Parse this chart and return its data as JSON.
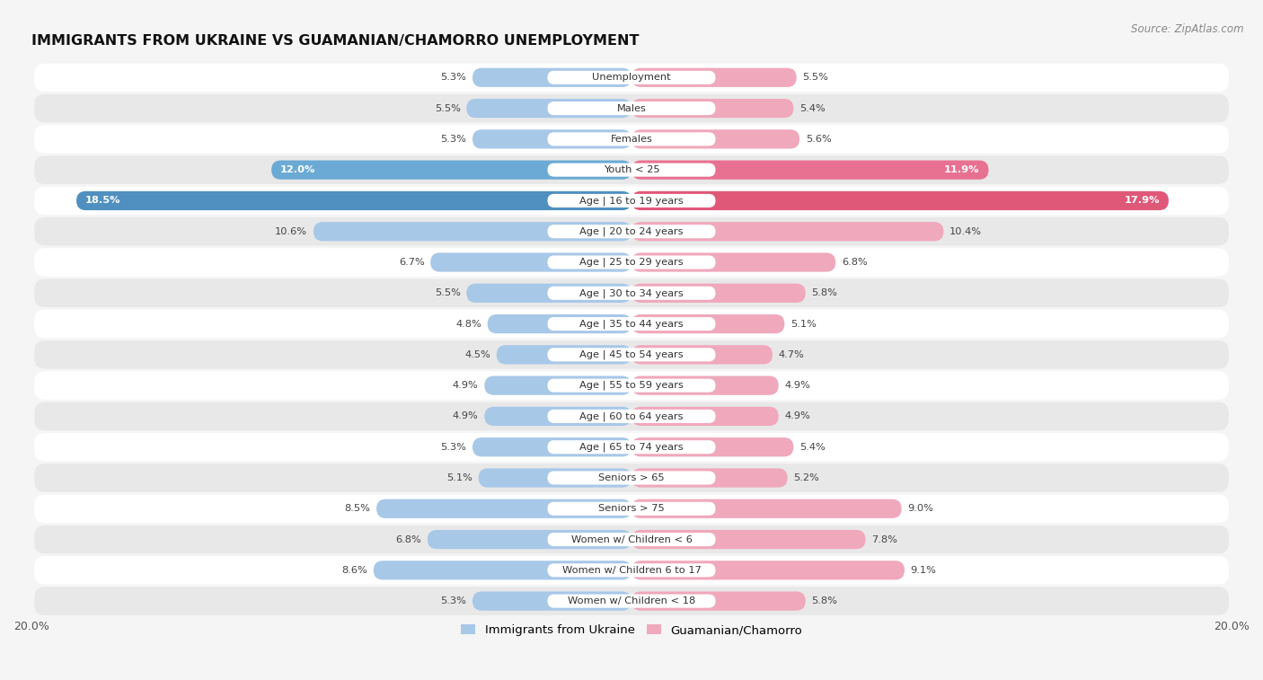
{
  "title": "IMMIGRANTS FROM UKRAINE VS GUAMANIAN/CHAMORRO UNEMPLOYMENT",
  "source": "Source: ZipAtlas.com",
  "categories": [
    "Unemployment",
    "Males",
    "Females",
    "Youth < 25",
    "Age | 16 to 19 years",
    "Age | 20 to 24 years",
    "Age | 25 to 29 years",
    "Age | 30 to 34 years",
    "Age | 35 to 44 years",
    "Age | 45 to 54 years",
    "Age | 55 to 59 years",
    "Age | 60 to 64 years",
    "Age | 65 to 74 years",
    "Seniors > 65",
    "Seniors > 75",
    "Women w/ Children < 6",
    "Women w/ Children 6 to 17",
    "Women w/ Children < 18"
  ],
  "left_values": [
    5.3,
    5.5,
    5.3,
    12.0,
    18.5,
    10.6,
    6.7,
    5.5,
    4.8,
    4.5,
    4.9,
    4.9,
    5.3,
    5.1,
    8.5,
    6.8,
    8.6,
    5.3
  ],
  "right_values": [
    5.5,
    5.4,
    5.6,
    11.9,
    17.9,
    10.4,
    6.8,
    5.8,
    5.1,
    4.7,
    4.9,
    4.9,
    5.4,
    5.2,
    9.0,
    7.8,
    9.1,
    5.8
  ],
  "left_color_normal": "#a8c8e8",
  "right_color_normal": "#f0a8bc",
  "left_color_highlight1": "#6aaad4",
  "right_color_highlight1": "#e87090",
  "left_color_highlight2": "#5090c0",
  "right_color_highlight2": "#e05878",
  "highlight_rows_medium": [
    3
  ],
  "highlight_rows_strong": [
    4
  ],
  "left_label": "Immigrants from Ukraine",
  "right_label": "Guamanian/Chamorro",
  "xlim": 20.0,
  "fig_bg": "#f5f5f5",
  "row_bg_light": "#ffffff",
  "row_bg_dark": "#e8e8e8"
}
